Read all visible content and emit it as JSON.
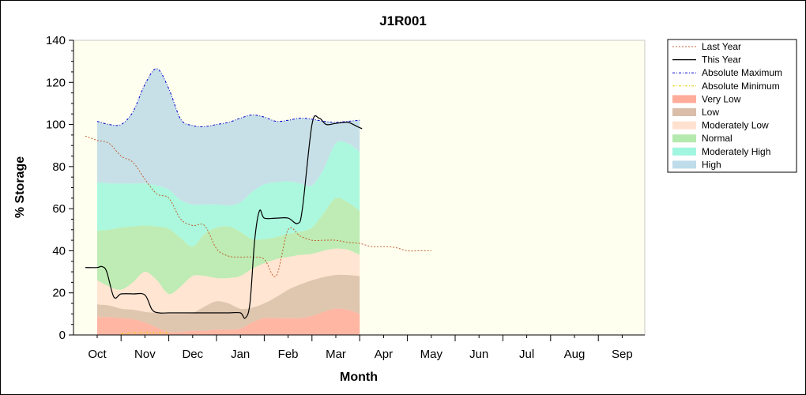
{
  "chart_data": {
    "type": "area",
    "title": "J1R001",
    "xlabel": "Month",
    "ylabel": "% Storage",
    "ylim": [
      0,
      140
    ],
    "yticks": [
      0,
      20,
      40,
      60,
      80,
      100,
      120,
      140
    ],
    "categories": [
      "Oct",
      "Nov",
      "Dec",
      "Jan",
      "Feb",
      "Mar",
      "Apr",
      "May",
      "Jun",
      "Jul",
      "Aug",
      "Sep"
    ],
    "legend_position": "right",
    "background_color": "#fffff0",
    "bands": [
      {
        "name": "Very Low",
        "color": "#ff9e8a",
        "lower": [
          [
            0,
            0
          ],
          [
            11,
            0
          ]
        ],
        "upper": [
          [
            0,
            8.5
          ],
          [
            0.5,
            8.5
          ],
          [
            1,
            8
          ],
          [
            1.5,
            7.5
          ],
          [
            2,
            6
          ],
          [
            2.5,
            3.5
          ],
          [
            3,
            1.5
          ],
          [
            3.5,
            1.5
          ],
          [
            4,
            2
          ],
          [
            4.5,
            2
          ],
          [
            5,
            2.5
          ],
          [
            5.5,
            2.5
          ],
          [
            6,
            3
          ],
          [
            6.5,
            6
          ],
          [
            7,
            8
          ],
          [
            7.5,
            8
          ],
          [
            8,
            8
          ],
          [
            8.5,
            8
          ],
          [
            9,
            9
          ],
          [
            9.5,
            11
          ],
          [
            10,
            12.5
          ],
          [
            10.5,
            12
          ],
          [
            11,
            10
          ]
        ]
      },
      {
        "name": "Low",
        "color": "#d4b39a",
        "upper": [
          [
            0,
            14.5
          ],
          [
            0.5,
            14
          ],
          [
            1,
            12.5
          ],
          [
            1.5,
            12
          ],
          [
            2,
            11
          ],
          [
            2.5,
            10.5
          ],
          [
            3,
            10
          ],
          [
            3.5,
            10
          ],
          [
            4,
            10.5
          ],
          [
            4.5,
            13.5
          ],
          [
            5,
            16
          ],
          [
            5.5,
            15
          ],
          [
            6,
            12.5
          ],
          [
            6.5,
            13
          ],
          [
            7,
            15
          ],
          [
            7.5,
            18
          ],
          [
            8,
            21.5
          ],
          [
            8.5,
            24
          ],
          [
            9,
            26
          ],
          [
            9.5,
            27.5
          ],
          [
            10,
            28.5
          ],
          [
            10.5,
            28.5
          ],
          [
            11,
            28
          ]
        ]
      },
      {
        "name": "Moderately Low",
        "color": "#ffdcc8",
        "upper": [
          [
            0,
            26
          ],
          [
            0.5,
            23
          ],
          [
            1,
            21.5
          ],
          [
            1.5,
            25
          ],
          [
            2,
            30
          ],
          [
            2.5,
            26
          ],
          [
            3,
            19.5
          ],
          [
            3.5,
            23
          ],
          [
            4,
            28
          ],
          [
            4.5,
            28
          ],
          [
            5,
            27
          ],
          [
            5.5,
            27
          ],
          [
            6,
            28
          ],
          [
            6.5,
            31.5
          ],
          [
            7,
            34
          ],
          [
            7.5,
            36
          ],
          [
            8,
            37
          ],
          [
            8.5,
            38
          ],
          [
            9,
            38.5
          ],
          [
            9.5,
            40
          ],
          [
            10,
            41
          ],
          [
            10.5,
            40.5
          ],
          [
            11,
            38
          ]
        ]
      },
      {
        "name": "Normal",
        "color": "#a8e6a0",
        "upper": [
          [
            0,
            49.5
          ],
          [
            0.5,
            50
          ],
          [
            1,
            51
          ],
          [
            1.5,
            51.5
          ],
          [
            2,
            52
          ],
          [
            2.5,
            51.5
          ],
          [
            3,
            50.5
          ],
          [
            3.5,
            46
          ],
          [
            4,
            42
          ],
          [
            4.5,
            48
          ],
          [
            5,
            51
          ],
          [
            5.5,
            51.5
          ],
          [
            6,
            49
          ],
          [
            6.5,
            45.5
          ],
          [
            7,
            45.5
          ],
          [
            7.5,
            46.5
          ],
          [
            8,
            48
          ],
          [
            8.5,
            49
          ],
          [
            9,
            51
          ],
          [
            9.5,
            58
          ],
          [
            10,
            65
          ],
          [
            10.5,
            63
          ],
          [
            11,
            59
          ]
        ]
      },
      {
        "name": "Moderately High",
        "color": "#8ff5d8",
        "upper": [
          [
            0,
            72.5
          ],
          [
            0.5,
            72
          ],
          [
            1,
            72
          ],
          [
            1.5,
            72
          ],
          [
            2,
            72
          ],
          [
            2.5,
            71
          ],
          [
            3,
            69
          ],
          [
            3.5,
            64
          ],
          [
            4,
            62
          ],
          [
            4.5,
            62
          ],
          [
            5,
            62
          ],
          [
            5.5,
            61.5
          ],
          [
            6,
            63
          ],
          [
            6.5,
            68
          ],
          [
            7,
            71.5
          ],
          [
            7.5,
            72.5
          ],
          [
            8,
            73
          ],
          [
            8.5,
            72
          ],
          [
            9,
            71
          ],
          [
            9.5,
            79
          ],
          [
            10,
            91
          ],
          [
            10.5,
            91
          ],
          [
            11,
            87
          ]
        ]
      },
      {
        "name": "High",
        "color": "#b4d6e6",
        "upper": [
          [
            0,
            101.5
          ],
          [
            0.5,
            100
          ],
          [
            1,
            100
          ],
          [
            1.5,
            106
          ],
          [
            2,
            119
          ],
          [
            2.5,
            126.5
          ],
          [
            3,
            117
          ],
          [
            3.5,
            102.5
          ],
          [
            4,
            99.5
          ],
          [
            4.5,
            99
          ],
          [
            5,
            100
          ],
          [
            5.5,
            101
          ],
          [
            6,
            103
          ],
          [
            6.5,
            104.5
          ],
          [
            7,
            103.5
          ],
          [
            7.5,
            101.5
          ],
          [
            8,
            102
          ],
          [
            8.5,
            103
          ],
          [
            9,
            102.5
          ],
          [
            9.5,
            101.5
          ],
          [
            10,
            101
          ],
          [
            10.5,
            101.5
          ],
          [
            11,
            102
          ]
        ]
      }
    ],
    "series": [
      {
        "name": "Last Year",
        "color": "#c06030",
        "style": "dotted",
        "points": [
          [
            -0.5,
            94.5
          ],
          [
            0,
            92.5
          ],
          [
            0.5,
            91
          ],
          [
            1,
            85
          ],
          [
            1.5,
            82
          ],
          [
            2,
            74
          ],
          [
            2.5,
            67
          ],
          [
            3,
            65
          ],
          [
            3.5,
            55
          ],
          [
            4,
            52
          ],
          [
            4.5,
            52
          ],
          [
            5,
            41
          ],
          [
            5.5,
            37.5
          ],
          [
            6,
            37
          ],
          [
            6.5,
            37
          ],
          [
            7,
            36
          ],
          [
            7.5,
            28
          ],
          [
            8,
            50
          ],
          [
            8.5,
            47
          ],
          [
            9,
            45
          ],
          [
            9.5,
            45
          ],
          [
            10,
            45
          ],
          [
            10.5,
            44
          ],
          [
            11,
            43.5
          ],
          [
            11.5,
            42
          ],
          [
            12,
            42
          ],
          [
            12.5,
            41.5
          ],
          [
            13,
            40
          ],
          [
            13.5,
            40
          ],
          [
            14,
            40
          ]
        ]
      },
      {
        "name": "This Year",
        "color": "#000000",
        "style": "solid",
        "points": [
          [
            -0.5,
            32
          ],
          [
            0,
            32
          ],
          [
            0.2,
            32.5
          ],
          [
            0.4,
            30
          ],
          [
            0.7,
            18
          ],
          [
            1,
            19.5
          ],
          [
            1.5,
            19.5
          ],
          [
            2,
            19
          ],
          [
            2.3,
            12
          ],
          [
            2.6,
            10.5
          ],
          [
            3,
            10.5
          ],
          [
            4,
            10.5
          ],
          [
            5,
            10.5
          ],
          [
            5.5,
            10.5
          ],
          [
            6,
            10.5
          ],
          [
            6.2,
            8
          ],
          [
            6.4,
            15
          ],
          [
            6.6,
            45
          ],
          [
            6.8,
            59
          ],
          [
            7,
            55.5
          ],
          [
            7.5,
            55.5
          ],
          [
            8,
            55.5
          ],
          [
            8.4,
            53
          ],
          [
            8.6,
            60
          ],
          [
            9,
            100
          ],
          [
            9.3,
            103
          ],
          [
            9.6,
            100
          ],
          [
            10,
            100.5
          ],
          [
            10.5,
            101
          ],
          [
            10.9,
            99
          ],
          [
            11.1,
            98
          ]
        ]
      },
      {
        "name": "Absolute Maximum",
        "color": "#0000cc",
        "style": "dashdot",
        "follows": "High upper"
      },
      {
        "name": "Absolute Minimum",
        "color": "#e0d000",
        "style": "dashdot",
        "points": [
          [
            1,
            0.5
          ],
          [
            1.5,
            1
          ],
          [
            2,
            1
          ],
          [
            2.5,
            1
          ],
          [
            3,
            1
          ]
        ]
      }
    ]
  }
}
